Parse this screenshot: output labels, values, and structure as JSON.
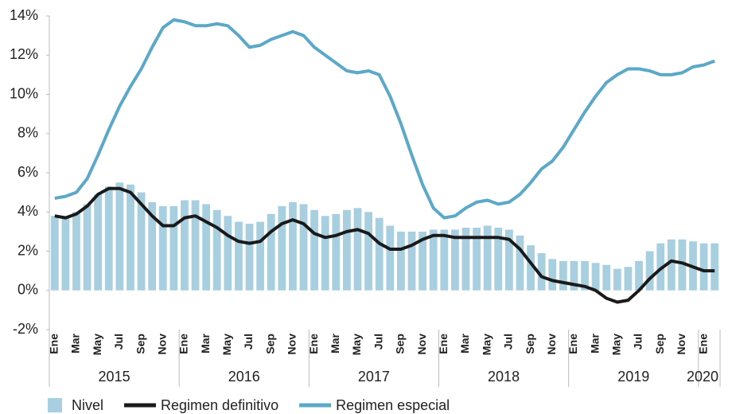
{
  "chart_data": {
    "type": "combo",
    "categories": [
      "Ene",
      null,
      "Mar",
      null,
      "May",
      null,
      "Jul",
      null,
      "Sep",
      null,
      "Nov",
      null,
      "Ene",
      null,
      "Mar",
      null,
      "May",
      null,
      "Jul",
      null,
      "Sep",
      null,
      "Nov",
      null,
      "Ene",
      null,
      "Mar",
      null,
      "May",
      null,
      "Jul",
      null,
      "Sep",
      null,
      "Nov",
      null,
      "Ene",
      null,
      "Mar",
      null,
      "May",
      null,
      "Jul",
      null,
      "Sep",
      null,
      "Nov",
      null,
      "Ene",
      null,
      "Mar",
      null,
      "May",
      null,
      "Jul",
      null,
      "Sep",
      null,
      "Nov",
      null,
      "Ene",
      null
    ],
    "years": [
      "2015",
      "2016",
      "2017",
      "2018",
      "2019",
      "2020"
    ],
    "series": [
      {
        "name": "Nivel",
        "type": "bar",
        "color": "#a8cfdf",
        "values": [
          3.8,
          3.8,
          4.0,
          4.4,
          4.9,
          5.3,
          5.5,
          5.4,
          5.0,
          4.5,
          4.3,
          4.3,
          4.6,
          4.6,
          4.4,
          4.1,
          3.8,
          3.5,
          3.4,
          3.5,
          3.9,
          4.3,
          4.5,
          4.4,
          4.1,
          3.8,
          3.9,
          4.1,
          4.2,
          4.0,
          3.7,
          3.3,
          3.0,
          3.0,
          3.0,
          3.1,
          3.1,
          3.1,
          3.2,
          3.2,
          3.3,
          3.2,
          3.1,
          2.8,
          2.3,
          1.9,
          1.6,
          1.5,
          1.5,
          1.5,
          1.4,
          1.3,
          1.1,
          1.2,
          1.5,
          2.0,
          2.4,
          2.6,
          2.6,
          2.5,
          2.4,
          2.4
        ]
      },
      {
        "name": "Regimen definitivo",
        "type": "line",
        "color": "#1a1a1a",
        "values": [
          3.8,
          3.7,
          3.9,
          4.3,
          4.9,
          5.2,
          5.2,
          5.0,
          4.4,
          3.8,
          3.3,
          3.3,
          3.7,
          3.8,
          3.5,
          3.2,
          2.8,
          2.5,
          2.4,
          2.5,
          3.0,
          3.4,
          3.6,
          3.4,
          2.9,
          2.7,
          2.8,
          3.0,
          3.1,
          2.9,
          2.4,
          2.1,
          2.1,
          2.3,
          2.6,
          2.8,
          2.8,
          2.7,
          2.7,
          2.7,
          2.7,
          2.7,
          2.6,
          2.1,
          1.4,
          0.7,
          0.5,
          0.4,
          0.3,
          0.2,
          0.0,
          -0.4,
          -0.6,
          -0.5,
          0.0,
          0.6,
          1.1,
          1.5,
          1.4,
          1.2,
          1.0,
          1.0
        ]
      },
      {
        "name": "Regimen especial",
        "type": "line",
        "color": "#5ba8c8",
        "values": [
          4.7,
          4.8,
          5.0,
          5.7,
          6.9,
          8.2,
          9.4,
          10.4,
          11.3,
          12.4,
          13.4,
          13.8,
          13.7,
          13.5,
          13.5,
          13.6,
          13.5,
          13.0,
          12.4,
          12.5,
          12.8,
          13.0,
          13.2,
          13.0,
          12.4,
          12.0,
          11.6,
          11.2,
          11.1,
          11.2,
          11.0,
          9.9,
          8.5,
          6.9,
          5.4,
          4.2,
          3.7,
          3.8,
          4.2,
          4.5,
          4.6,
          4.4,
          4.5,
          4.9,
          5.5,
          6.2,
          6.6,
          7.3,
          8.2,
          9.1,
          9.9,
          10.6,
          11.0,
          11.3,
          11.3,
          11.2,
          11.0,
          11.0,
          11.1,
          11.4,
          11.5,
          11.7
        ]
      }
    ],
    "ylim": [
      -2,
      14
    ],
    "yticks": [
      {
        "value": -2,
        "label": "-2%"
      },
      {
        "value": 0,
        "label": "0%"
      },
      {
        "value": 2,
        "label": "2%"
      },
      {
        "value": 4,
        "label": "4%"
      },
      {
        "value": 6,
        "label": "6%"
      },
      {
        "value": 8,
        "label": "8%"
      },
      {
        "value": 10,
        "label": "10%"
      },
      {
        "value": 12,
        "label": "12%"
      },
      {
        "value": 14,
        "label": "14%"
      }
    ],
    "legend": "bottom"
  }
}
